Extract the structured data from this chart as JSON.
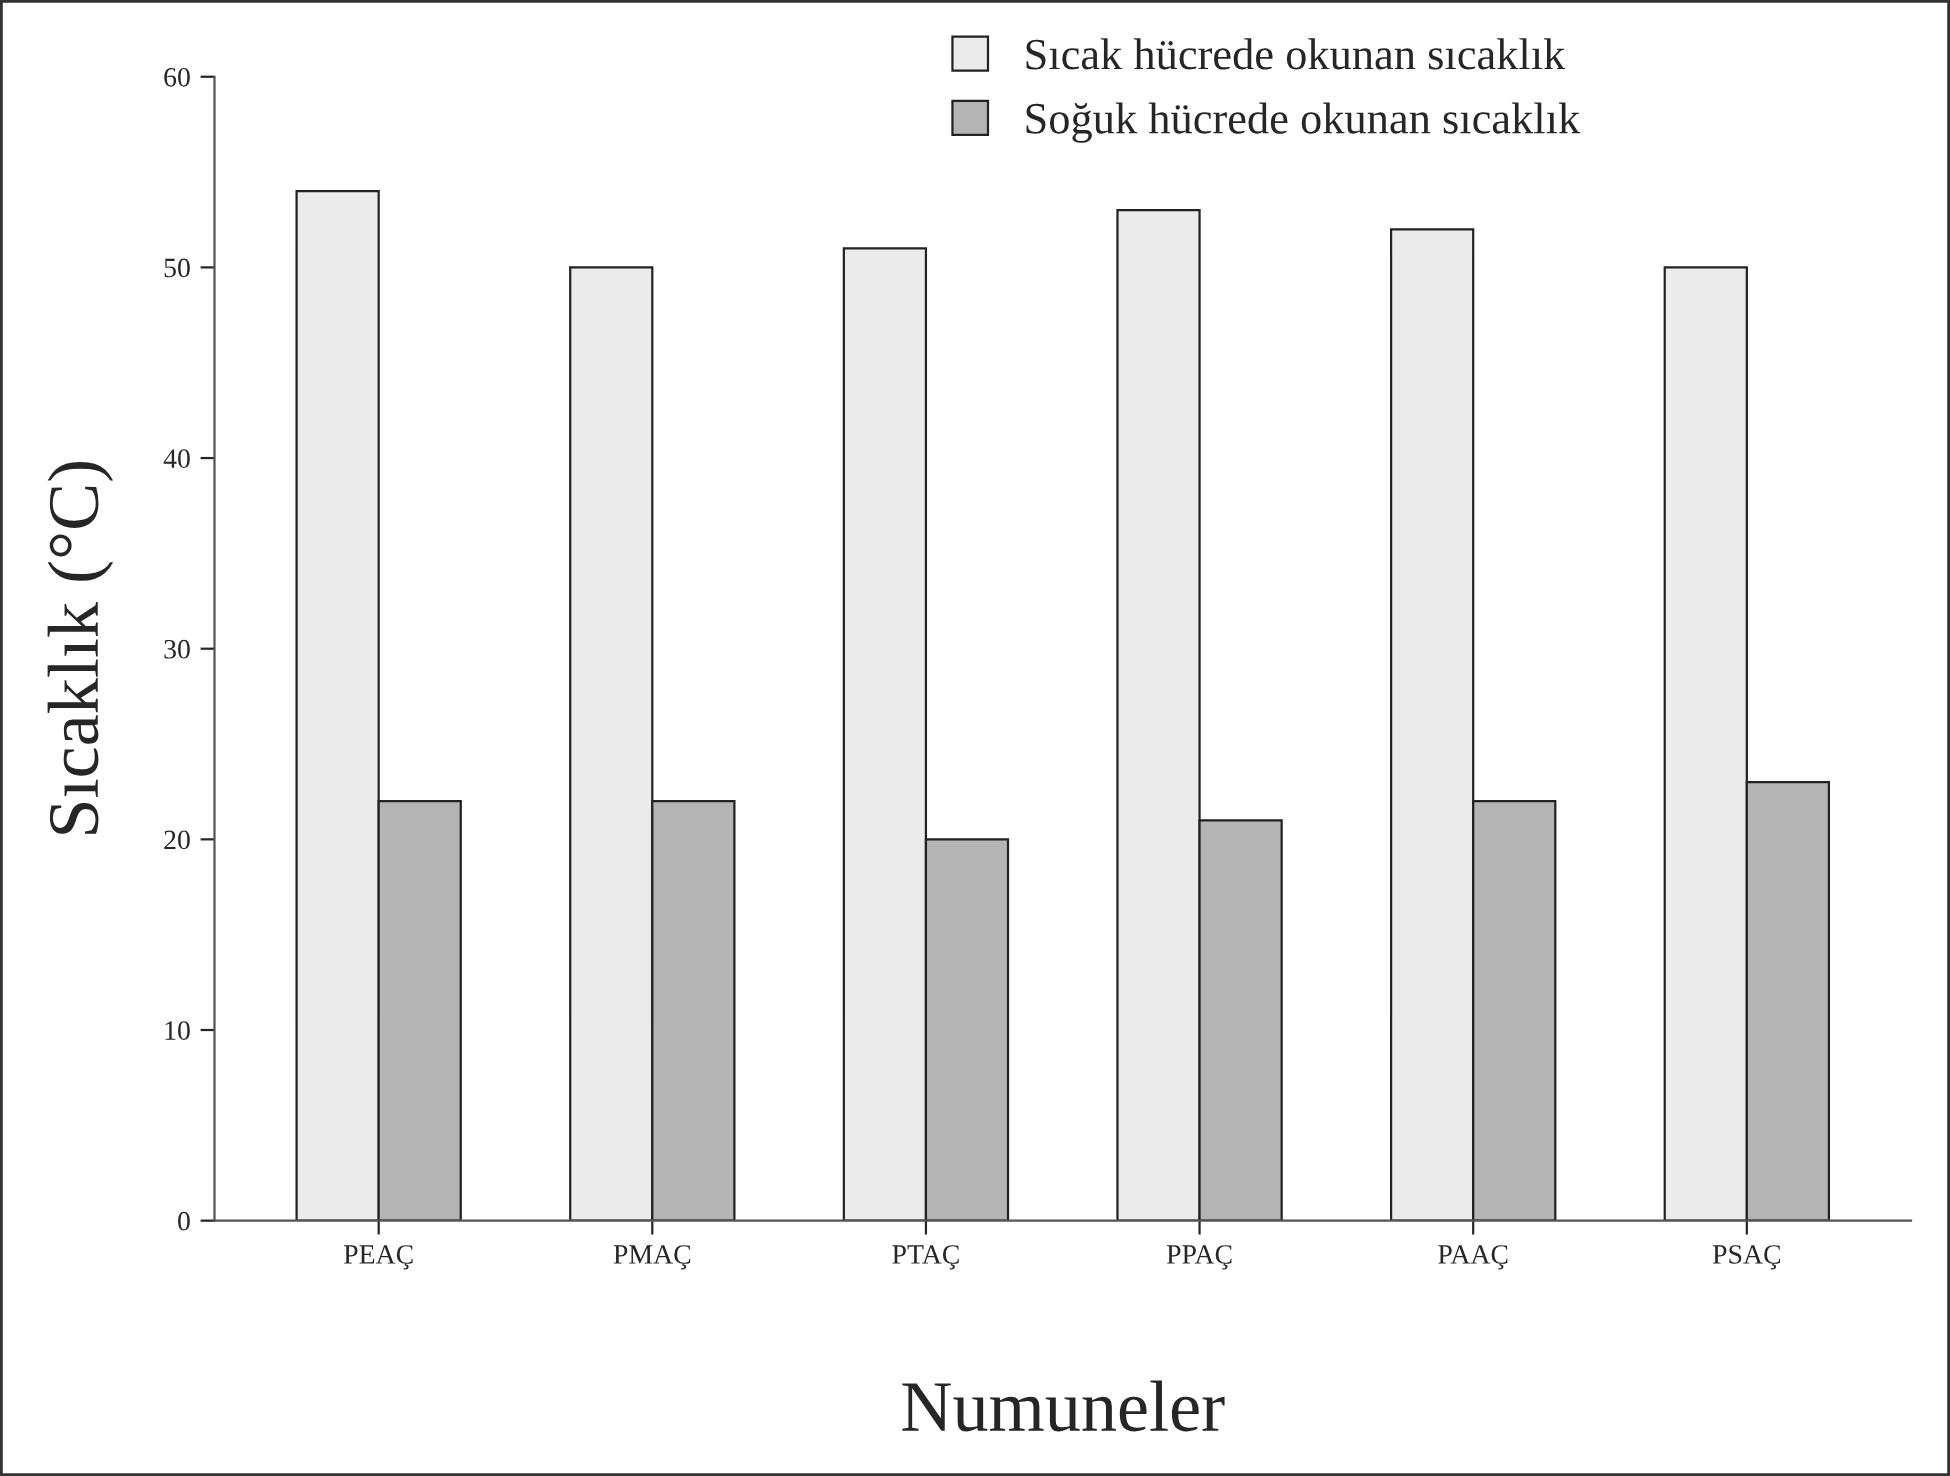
{
  "chart_data": {
    "type": "bar",
    "xlabel": "Numuneler",
    "ylabel": "Sıcaklık (°C)",
    "categories": [
      "PEAÇ",
      "PMAÇ",
      "PTAÇ",
      "PPAÇ",
      "PAAÇ",
      "PSAÇ"
    ],
    "series": [
      {
        "name": "Sıcak hücrede okunan sıcaklık",
        "color": "#ebebeb",
        "values": [
          54,
          50,
          51,
          53,
          52,
          50
        ]
      },
      {
        "name": "Soğuk hücrede okunan sıcaklık",
        "color": "#b4b4b4",
        "values": [
          22,
          22,
          20,
          21,
          22,
          23
        ]
      }
    ],
    "ylim": [
      0,
      60
    ],
    "yticks": [
      0,
      10,
      20,
      30,
      40,
      50,
      60
    ],
    "grid": false,
    "legend": "top"
  }
}
